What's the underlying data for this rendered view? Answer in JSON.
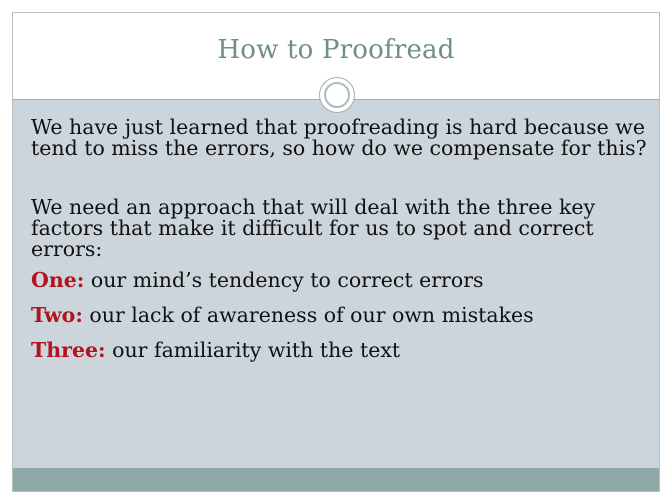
{
  "slide": {
    "title": "How to Proofread",
    "paragraphs": [
      "We have just learned that proofreading is hard because we tend to miss the errors, so how do we compensate for this?",
      "We need an approach that will deal with the three key factors that make it difficult for us to spot and correct errors:"
    ],
    "points": [
      {
        "label": "One:",
        "text": " our mind’s tendency to correct errors"
      },
      {
        "label": "Two:",
        "text": " our lack of awareness of our own mistakes"
      },
      {
        "label": "Three:",
        "text": " our familiarity with the text"
      }
    ],
    "colors": {
      "title": "#6f8f8a",
      "body_background": "#ccd5db",
      "accent_label": "#b3141f",
      "footer_bar": "#8fa9a9"
    }
  }
}
